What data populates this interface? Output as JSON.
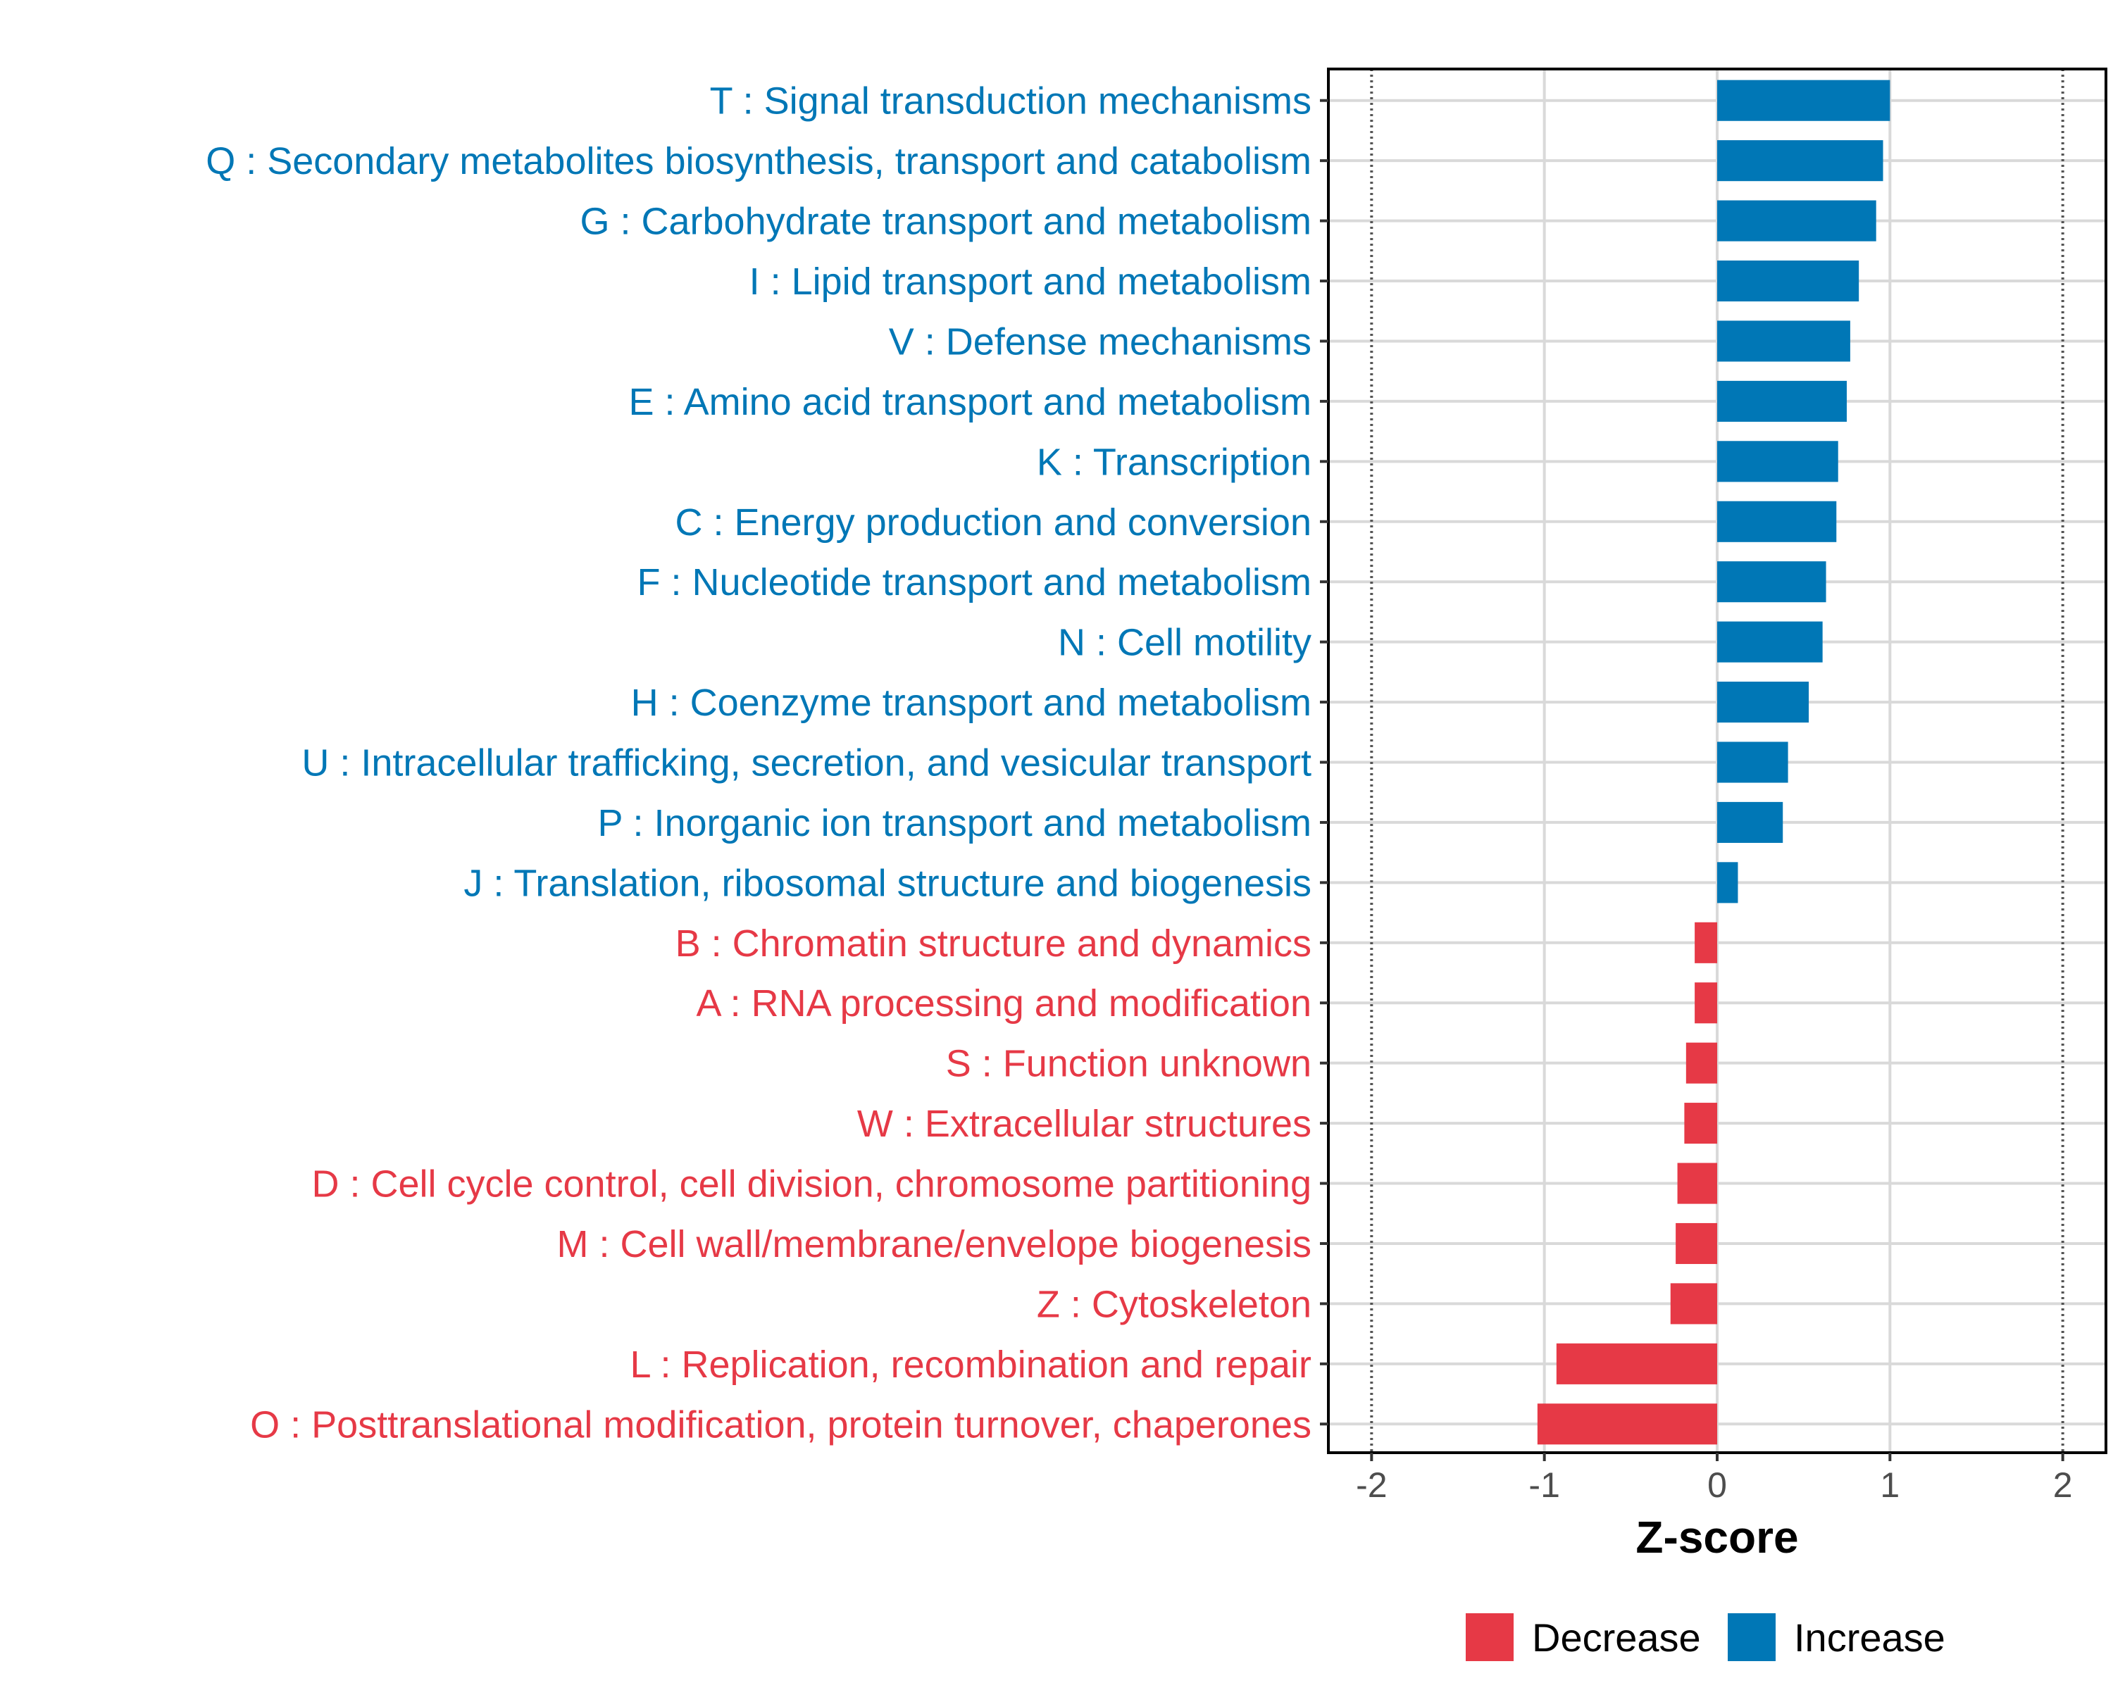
{
  "chart_data": {
    "type": "bar",
    "orientation": "horizontal",
    "title": "",
    "xlabel": "Z-score",
    "ylabel": "",
    "xlim": [
      -2.25,
      2.25
    ],
    "x_ticks": [
      -2,
      -1,
      0,
      1,
      2
    ],
    "x_tick_labels": [
      "-2",
      "-1",
      "0",
      "1",
      "2"
    ],
    "reference_lines": [
      -2,
      2
    ],
    "grid": true,
    "legend_position": "bottom",
    "legend": [
      {
        "key": "Decrease",
        "label": "Decrease",
        "color": "#E63946"
      },
      {
        "key": "Increase",
        "label": "Increase",
        "color": "#0077B6"
      }
    ],
    "bars": [
      {
        "label": "T : Signal transduction mechanisms",
        "value": 1.0,
        "group": "Increase"
      },
      {
        "label": "Q : Secondary metabolites biosynthesis, transport and catabolism",
        "value": 0.96,
        "group": "Increase"
      },
      {
        "label": "G : Carbohydrate transport and metabolism",
        "value": 0.92,
        "group": "Increase"
      },
      {
        "label": "I : Lipid transport and metabolism",
        "value": 0.82,
        "group": "Increase"
      },
      {
        "label": "V : Defense mechanisms",
        "value": 0.77,
        "group": "Increase"
      },
      {
        "label": "E : Amino acid transport and metabolism",
        "value": 0.75,
        "group": "Increase"
      },
      {
        "label": "K : Transcription",
        "value": 0.7,
        "group": "Increase"
      },
      {
        "label": "C : Energy production and conversion",
        "value": 0.69,
        "group": "Increase"
      },
      {
        "label": "F : Nucleotide transport and metabolism",
        "value": 0.63,
        "group": "Increase"
      },
      {
        "label": "N : Cell motility",
        "value": 0.61,
        "group": "Increase"
      },
      {
        "label": "H : Coenzyme transport and metabolism",
        "value": 0.53,
        "group": "Increase"
      },
      {
        "label": "U : Intracellular trafficking, secretion, and vesicular transport",
        "value": 0.41,
        "group": "Increase"
      },
      {
        "label": "P : Inorganic ion transport and metabolism",
        "value": 0.38,
        "group": "Increase"
      },
      {
        "label": "J : Translation, ribosomal structure and biogenesis",
        "value": 0.12,
        "group": "Increase"
      },
      {
        "label": "B : Chromatin structure and dynamics",
        "value": -0.13,
        "group": "Decrease"
      },
      {
        "label": "A : RNA processing and modification",
        "value": -0.13,
        "group": "Decrease"
      },
      {
        "label": "S : Function unknown",
        "value": -0.18,
        "group": "Decrease"
      },
      {
        "label": "W : Extracellular structures",
        "value": -0.19,
        "group": "Decrease"
      },
      {
        "label": "D : Cell cycle control, cell division, chromosome partitioning",
        "value": -0.23,
        "group": "Decrease"
      },
      {
        "label": "M : Cell wall/membrane/envelope biogenesis",
        "value": -0.24,
        "group": "Decrease"
      },
      {
        "label": "Z : Cytoskeleton",
        "value": -0.27,
        "group": "Decrease"
      },
      {
        "label": "L : Replication, recombination and repair",
        "value": -0.93,
        "group": "Decrease"
      },
      {
        "label": "O : Posttranslational modification, protein turnover, chaperones",
        "value": -1.04,
        "group": "Decrease"
      }
    ]
  }
}
